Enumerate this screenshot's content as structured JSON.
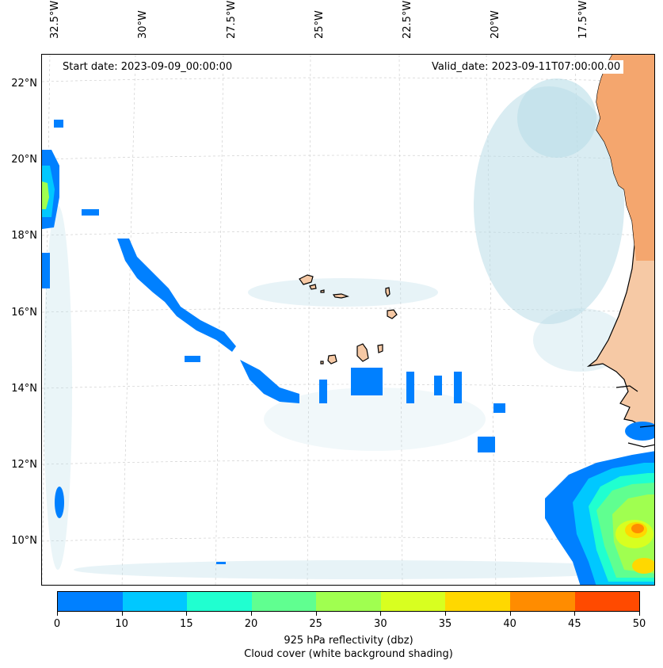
{
  "header": {
    "start_date": "Start date: 2023-09-09_00:00:00",
    "valid_date": "Valid_date: 2023-09-11T07:00:00.00"
  },
  "axes": {
    "lon_labels": [
      "32.5°W",
      "30°W",
      "27.5°W",
      "25°W",
      "22.5°W",
      "20°W",
      "17.5°W"
    ],
    "lat_labels": [
      "22°N",
      "20°N",
      "18°N",
      "16°N",
      "14°N",
      "12°N",
      "10°N"
    ]
  },
  "colorbar": {
    "ticks": [
      "0",
      "10",
      "15",
      "20",
      "25",
      "30",
      "35",
      "40",
      "45",
      "50"
    ],
    "colors": [
      "#0080ff",
      "#00c8ff",
      "#20ffd0",
      "#60ff90",
      "#a0ff50",
      "#d8ff20",
      "#ffd800",
      "#ff8c00",
      "#ff4a00"
    ],
    "label": "925 hPa reflectivity (dbz)",
    "sublabel": "Cloud cover (white background shading)"
  },
  "map": {
    "land_color": "#f4b27a",
    "coast_color": "#000000",
    "cloud_color": "#b9dde8"
  }
}
